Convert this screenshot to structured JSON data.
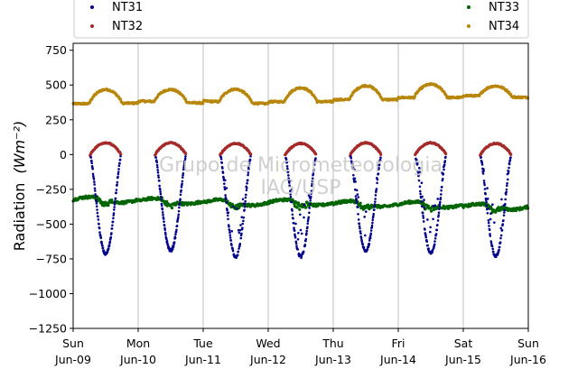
{
  "chart_data": {
    "type": "scatter",
    "ylabel": "Radiation",
    "ylabel_unit": "(Wm⁻²)",
    "ylim": [
      -1250,
      800
    ],
    "yticks": [
      750,
      500,
      250,
      0,
      -250,
      -500,
      -750,
      -1000,
      -1250
    ],
    "ytick_labels": [
      "750",
      "500",
      "250",
      "0",
      "−250",
      "−500",
      "−750",
      "−1000",
      "−1250"
    ],
    "xlim_days": [
      0,
      7
    ],
    "xticks": [
      {
        "day": 0,
        "weekday": "Sun",
        "date": "Jun-09"
      },
      {
        "day": 1,
        "weekday": "Mon",
        "date": "Jun-10"
      },
      {
        "day": 2,
        "weekday": "Tue",
        "date": "Jun-11"
      },
      {
        "day": 3,
        "weekday": "Wed",
        "date": "Jun-12"
      },
      {
        "day": 4,
        "weekday": "Thu",
        "date": "Jun-13"
      },
      {
        "day": 5,
        "weekday": "Fri",
        "date": "Jun-14"
      },
      {
        "day": 6,
        "weekday": "Sat",
        "date": "Jun-15"
      },
      {
        "day": 7,
        "weekday": "Sun",
        "date": "Jun-16"
      }
    ],
    "grid": "vertical",
    "watermark": [
      "Grupo de Micrometeorologia",
      "IAG/USP"
    ],
    "legend_position": "top",
    "series": [
      {
        "name": "NT31",
        "color": "#00008b",
        "description": "daytime negative dip, about -700 at midday, ~0 at night",
        "daily_min": [
          -715,
          -690,
          -735,
          -735,
          -690,
          -705,
          -730
        ]
      },
      {
        "name": "NT32",
        "color": "#a52a2a",
        "description": "daytime arc from ~-5 to ~85 at midday",
        "daily_peak": [
          85,
          85,
          80,
          80,
          85,
          85,
          80
        ]
      },
      {
        "name": "NT33",
        "color": "#006400",
        "description": "near constant around -330 to -390",
        "daily_level": [
          -325,
          -335,
          -345,
          -345,
          -355,
          -360,
          -375
        ]
      },
      {
        "name": "NT34",
        "color": "#b8860b",
        "description": "baseline ~380 with daily bump to ~470",
        "daily_base": [
          365,
          385,
          385,
          380,
          395,
          410,
          425
        ],
        "daily_peak": [
          465,
          475,
          480,
          480,
          495,
          505,
          500
        ]
      }
    ]
  }
}
